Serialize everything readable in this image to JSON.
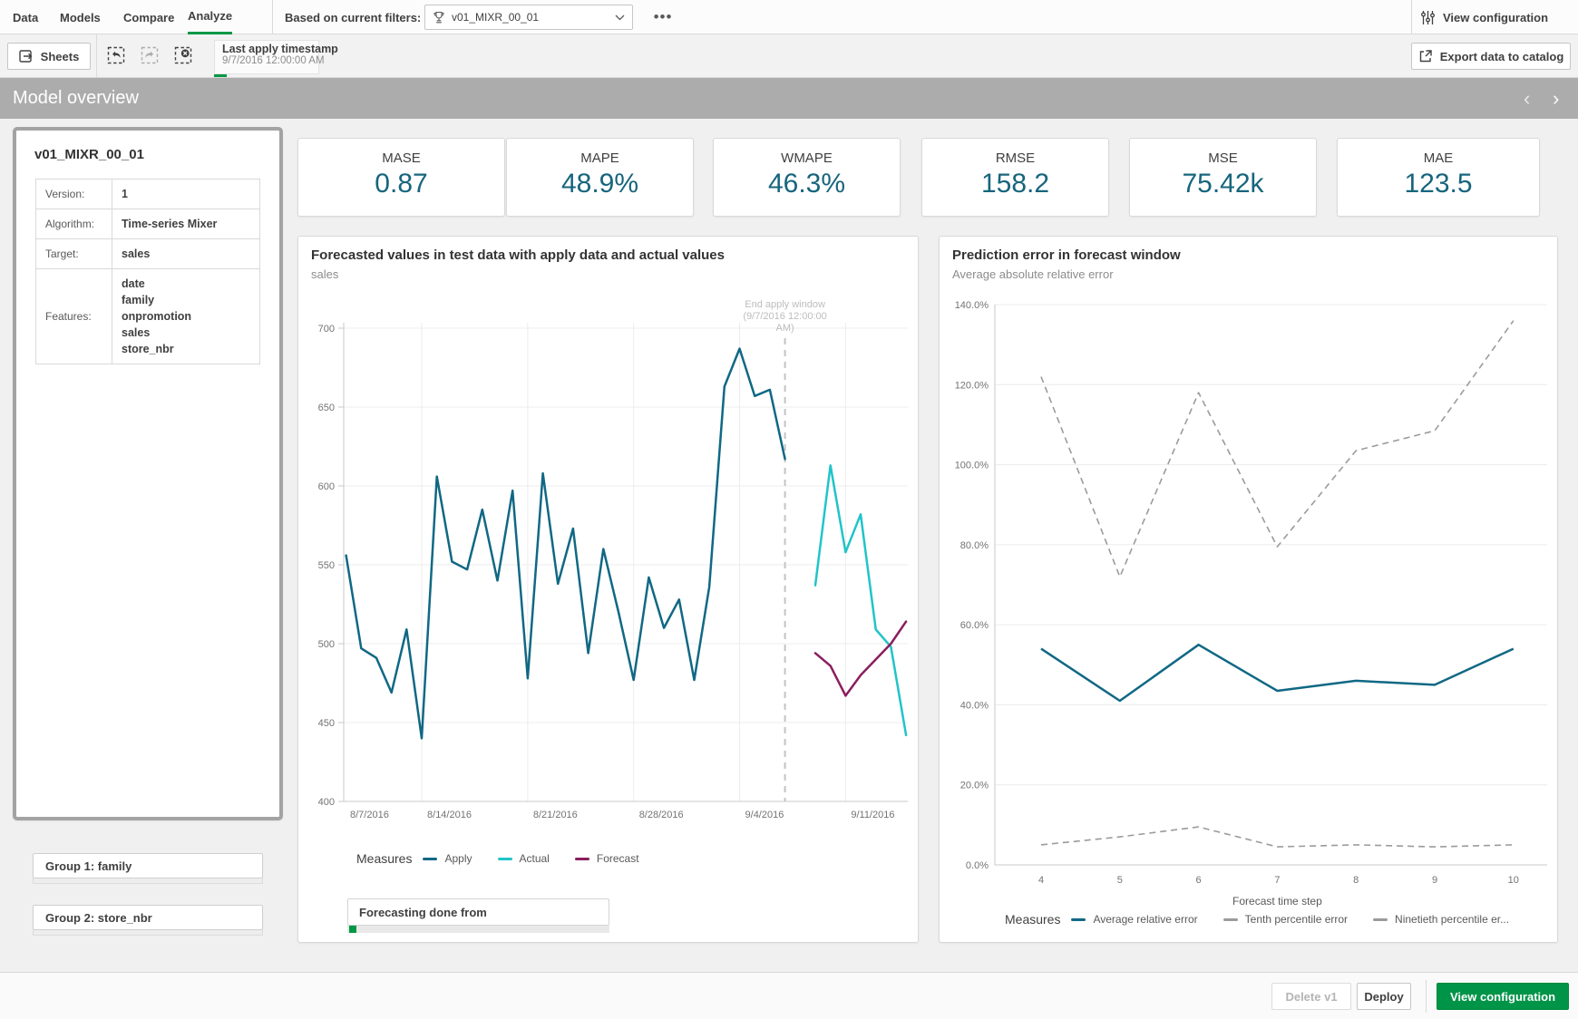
{
  "nav": {
    "tabs": [
      "Data",
      "Models",
      "Compare",
      "Analyze"
    ],
    "active_tab": "Analyze",
    "filters_label": "Based on current filters:",
    "filter_value": "v01_MIXR_00_01",
    "more_label": "•••",
    "view_config_label": "View configuration"
  },
  "toolbar": {
    "sheets_label": "Sheets",
    "last_apply_label": "Last apply timestamp",
    "last_apply_value": "9/7/2016 12:00:00 AM",
    "export_label": "Export data to catalog"
  },
  "sheet": {
    "title": "Model overview",
    "prev": "‹",
    "next": "›"
  },
  "model_card": {
    "title": "v01_MIXR_00_01",
    "rows": [
      {
        "label": "Version:",
        "values": [
          "1"
        ]
      },
      {
        "label": "Algorithm:",
        "values": [
          "Time-series Mixer"
        ]
      },
      {
        "label": "Target:",
        "values": [
          "sales"
        ]
      },
      {
        "label": "Features:",
        "values": [
          "date",
          "family",
          "onpromotion",
          "sales",
          "store_nbr"
        ]
      }
    ]
  },
  "kpis": [
    {
      "label": "MASE",
      "value": "0.87"
    },
    {
      "label": "MAPE",
      "value": "48.9%"
    },
    {
      "label": "WMAPE",
      "value": "46.3%"
    },
    {
      "label": "RMSE",
      "value": "158.2"
    },
    {
      "label": "MSE",
      "value": "75.42k"
    },
    {
      "label": "MAE",
      "value": "123.5"
    }
  ],
  "groups": [
    {
      "label": "Group 1: family"
    },
    {
      "label": "Group 2: store_nbr"
    }
  ],
  "forecast_box": {
    "label": "Forecasting done from"
  },
  "footer": {
    "delete_label": "Delete v1",
    "deploy_label": "Deploy",
    "view_config_label": "View configuration"
  },
  "colors": {
    "accent_green": "#009845",
    "teal": "#106884",
    "cyan": "#20c4c9",
    "magenta": "#8a1e5e",
    "dash_gray": "#9b9b9b",
    "kpi_teal": "#17657d"
  },
  "chart_data": [
    {
      "type": "line",
      "title": "Forecasted values in test data with apply data and actual values",
      "ylabel": "sales",
      "legend_title": "Measures",
      "ylim": [
        400,
        700
      ],
      "y_ticks": [
        400,
        450,
        500,
        550,
        600,
        650,
        700
      ],
      "x_ticks": [
        {
          "label": "8/7/2016",
          "day": 0
        },
        {
          "label": "8/14/2016",
          "day": 7
        },
        {
          "label": "8/21/2016",
          "day": 14
        },
        {
          "label": "8/28/2016",
          "day": 21
        },
        {
          "label": "9/4/2016",
          "day": 28
        },
        {
          "label": "9/11/2016",
          "day": 35
        }
      ],
      "annotation": {
        "lines": [
          "End apply window",
          "(9/7/2016 12:00:00",
          "AM)"
        ],
        "day": 31
      },
      "series": [
        {
          "name": "Apply",
          "color": "#106884",
          "dashed": false,
          "points": [
            [
              "8/9",
              556
            ],
            [
              "8/10",
              497
            ],
            [
              "8/11",
              491
            ],
            [
              "8/12",
              469
            ],
            [
              "8/13",
              509
            ],
            [
              "8/14",
              440
            ],
            [
              "8/15",
              606
            ],
            [
              "8/16",
              552
            ],
            [
              "8/17",
              547
            ],
            [
              "8/18",
              585
            ],
            [
              "8/19",
              540
            ],
            [
              "8/20",
              597
            ],
            [
              "8/21",
              478
            ],
            [
              "8/22",
              608
            ],
            [
              "8/23",
              538
            ],
            [
              "8/24",
              573
            ],
            [
              "8/25",
              494
            ],
            [
              "8/26",
              560
            ],
            [
              "8/27",
              520
            ],
            [
              "8/28",
              477
            ],
            [
              "8/29",
              542
            ],
            [
              "8/30",
              510
            ],
            [
              "8/31",
              528
            ],
            [
              "9/1",
              477
            ],
            [
              "9/2",
              536
            ],
            [
              "9/3",
              663
            ],
            [
              "9/4",
              687
            ],
            [
              "9/5",
              657
            ],
            [
              "9/6",
              661
            ],
            [
              "9/7",
              617
            ]
          ]
        },
        {
          "name": "Actual",
          "color": "#20c4c9",
          "dashed": false,
          "points": [
            [
              "9/9",
              537
            ],
            [
              "9/10",
              613
            ],
            [
              "9/11",
              558
            ],
            [
              "9/12",
              582
            ],
            [
              "9/13",
              509
            ],
            [
              "9/14",
              498
            ],
            [
              "9/15",
              442
            ]
          ]
        },
        {
          "name": "Forecast",
          "color": "#8a1e5e",
          "dashed": false,
          "points": [
            [
              "9/9",
              494
            ],
            [
              "9/10",
              486
            ],
            [
              "9/11",
              467
            ],
            [
              "9/12",
              480
            ],
            [
              "9/13",
              490
            ],
            [
              "9/14",
              500
            ],
            [
              "9/15",
              514
            ]
          ]
        }
      ]
    },
    {
      "type": "line",
      "title": "Prediction error in forecast window",
      "subtitle": "Average absolute relative error",
      "xlabel": "Forecast time step",
      "legend_title": "Measures",
      "ylim": [
        0,
        140
      ],
      "y_ticks": [
        0,
        20,
        40,
        60,
        80,
        100,
        120,
        140
      ],
      "x": [
        4,
        5,
        6,
        7,
        8,
        9,
        10
      ],
      "series": [
        {
          "name": "Average relative error",
          "color": "#106884",
          "dashed": false,
          "values": [
            54,
            41,
            55,
            43.5,
            46,
            45,
            54
          ]
        },
        {
          "name": "Tenth percentile error",
          "color": "#9b9b9b",
          "dashed": true,
          "values": [
            5,
            7,
            9.5,
            4.5,
            5,
            4.5,
            5
          ]
        },
        {
          "name": "Ninetieth percentile er...",
          "color": "#9b9b9b",
          "dashed": true,
          "values": [
            122,
            72,
            118,
            79.5,
            103.5,
            108.5,
            136
          ]
        }
      ]
    }
  ]
}
